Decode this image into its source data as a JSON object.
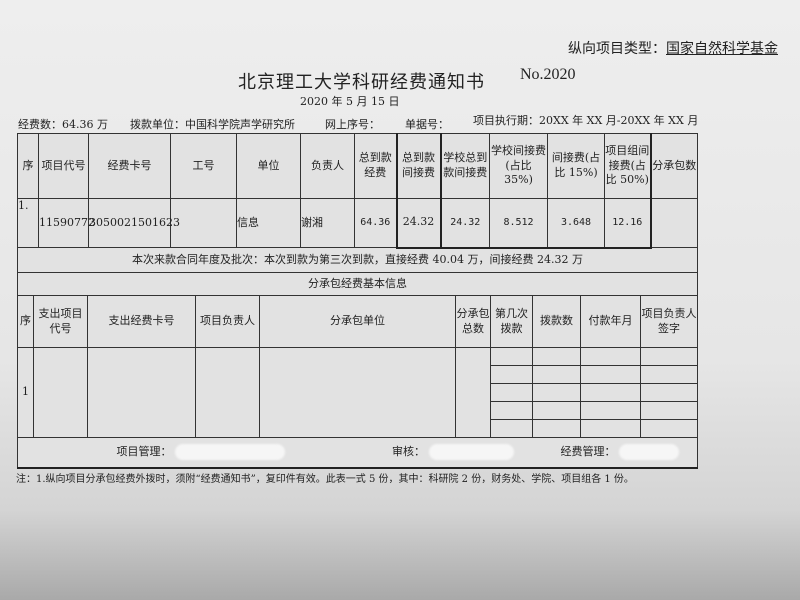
{
  "header": {
    "project_type_label": "纵向项目类型：",
    "project_type_value": "国家自然科学基金",
    "title": "北京理工大学科研经费通知书",
    "number": "No.2020",
    "date": "2020 年 5 月 15 日",
    "funds": "经费数：64.36 万",
    "payer": "拨款单位：中国科学院声学研究所",
    "online_no": "网上序号：",
    "doc_no": "单据号：",
    "period": "项目执行期：20XX 年 XX 月-20XX 年 XX 月"
  },
  "table1": {
    "headers": [
      "序",
      "项目代号",
      "经费卡号",
      "工号",
      "单位",
      "负责人",
      "总到款经费",
      "总到款间接费",
      "学校总到款间接费",
      "学校间接费(占比 35%)",
      "间接费(占比 15%)",
      "项目组间接费(占比 50%)",
      "分承包数"
    ],
    "row": [
      "1.",
      "11590772",
      "3050021501623",
      "",
      "信息",
      "谢湘",
      "64.36",
      "24.32",
      "24.32",
      "8.512",
      "3.648",
      "12.16",
      ""
    ],
    "batch_note": "本次来款合同年度及批次：本次到款为第三次到款，直接经费 40.04 万，间接经费 24.32 万",
    "sub_title": "分承包经费基本信息"
  },
  "table2": {
    "headers": [
      "序",
      "支出项目代号",
      "支出经费卡号",
      "项目负责人",
      "分承包单位",
      "分承包总数",
      "第几次拨款",
      "拨款数",
      "付款年月",
      "项目负责人签字"
    ],
    "row_index": "1",
    "footer": {
      "manager": "项目管理：",
      "audit": "审核：",
      "finance": "经费管理："
    }
  },
  "note": "注：1.纵向项目分承包经费外拨时，须附“经费通知书”，复印件有效。此表一式 5 份，其中：科研院 2 份，财务处、学院、项目组各 1 份。"
}
